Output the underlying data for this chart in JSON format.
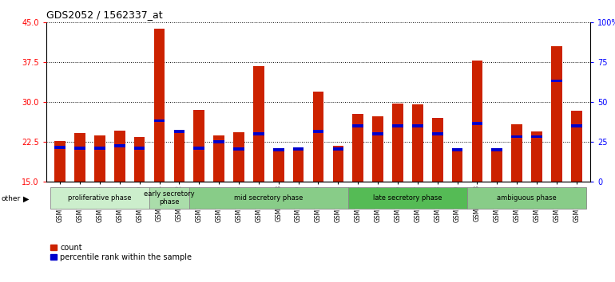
{
  "title": "GDS2052 / 1562337_at",
  "samples": [
    "GSM109814",
    "GSM109815",
    "GSM109816",
    "GSM109817",
    "GSM109820",
    "GSM109821",
    "GSM109822",
    "GSM109824",
    "GSM109825",
    "GSM109826",
    "GSM109827",
    "GSM109828",
    "GSM109829",
    "GSM109830",
    "GSM109831",
    "GSM109834",
    "GSM109835",
    "GSM109836",
    "GSM109837",
    "GSM109838",
    "GSM109839",
    "GSM109818",
    "GSM109819",
    "GSM109823",
    "GSM109832",
    "GSM109833",
    "GSM109840"
  ],
  "count_values": [
    22.7,
    24.2,
    23.8,
    24.7,
    23.5,
    43.8,
    24.7,
    28.6,
    23.8,
    24.3,
    36.8,
    21.1,
    21.5,
    32.0,
    21.8,
    27.8,
    27.4,
    29.8,
    29.6,
    27.0,
    21.0,
    37.8,
    20.7,
    25.8,
    24.5,
    40.5,
    28.4
  ],
  "percentile_values": [
    21.5,
    21.3,
    21.3,
    21.8,
    21.3,
    26.5,
    24.5,
    21.3,
    22.5,
    21.2,
    24.0,
    21.0,
    21.2,
    24.5,
    21.2,
    25.5,
    24.0,
    25.5,
    25.5,
    24.0,
    21.0,
    26.0,
    21.0,
    23.5,
    23.5,
    34.0,
    25.5
  ],
  "phases": [
    {
      "label": "proliferative phase",
      "start": 0,
      "end": 5
    },
    {
      "label": "early secretory\nphase",
      "start": 5,
      "end": 7
    },
    {
      "label": "mid secretory phase",
      "start": 7,
      "end": 15
    },
    {
      "label": "late secretory phase",
      "start": 15,
      "end": 21
    },
    {
      "label": "ambiguous phase",
      "start": 21,
      "end": 27
    }
  ],
  "phase_colors": [
    "#cceecc",
    "#aaddaa",
    "#88cc88",
    "#55bb55",
    "#88cc88"
  ],
  "ylim_left": [
    15,
    45
  ],
  "ylim_right": [
    0,
    100
  ],
  "yticks_left": [
    15,
    22.5,
    30,
    37.5,
    45
  ],
  "yticks_right": [
    0,
    25,
    50,
    75,
    100
  ],
  "bar_color": "#cc2200",
  "percentile_color": "#0000cc",
  "plot_bg": "#ffffff"
}
